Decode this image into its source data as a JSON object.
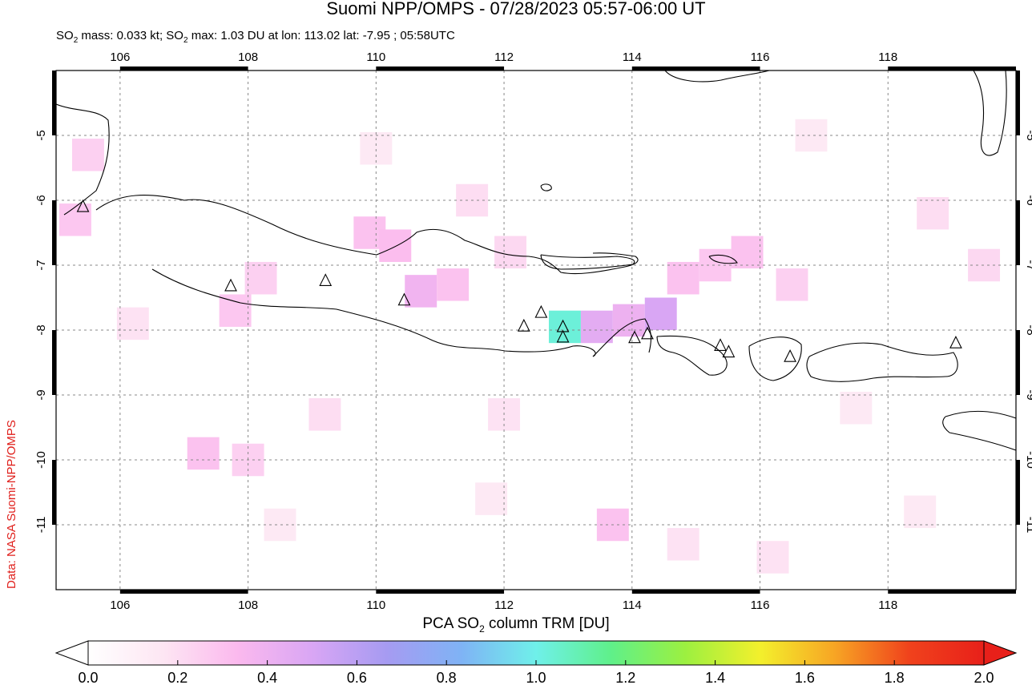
{
  "title": "Suomi NPP/OMPS - 07/28/2023 05:57-06:00 UT",
  "subtitle": {
    "mass_label": "SO",
    "mass_sub": "2",
    "mass_text": " mass: 0.033 kt; ",
    "max_label": "SO",
    "max_sub": "2",
    "max_text": " max: 1.03 DU at lon: 113.02 lat: -7.95 ; 05:58UTC"
  },
  "credit": "Data: NASA Suomi-NPP/OMPS",
  "colorbar": {
    "label_pre": "PCA SO",
    "label_sub": "2",
    "label_post": " column TRM [DU]",
    "ticks": [
      "0.0",
      "0.2",
      "0.4",
      "0.6",
      "0.8",
      "1.0",
      "1.2",
      "1.4",
      "1.6",
      "1.8",
      "2.0"
    ],
    "min": 0.0,
    "max": 2.0,
    "colors": [
      "#ffffff",
      "#fde6f3",
      "#fbb9ee",
      "#d9a6f4",
      "#a69bf2",
      "#7fb3f5",
      "#6ff0ea",
      "#5ff08a",
      "#9cf040",
      "#f3f02c",
      "#f7a524",
      "#f0421c",
      "#e8201a"
    ]
  },
  "map": {
    "lon_ticks": [
      106,
      108,
      110,
      112,
      114,
      116,
      118
    ],
    "lat_ticks": [
      -5,
      -6,
      -7,
      -8,
      -9,
      -10,
      -11
    ],
    "lon_range": [
      105,
      120
    ],
    "lat_range": [
      -4,
      -12
    ],
    "volcanoes": [
      [
        105.42,
        -6.1
      ],
      [
        107.73,
        -7.32
      ],
      [
        109.21,
        -7.24
      ],
      [
        110.44,
        -7.54
      ],
      [
        112.31,
        -7.94
      ],
      [
        112.58,
        -7.73
      ],
      [
        112.92,
        -7.95
      ],
      [
        112.92,
        -8.11
      ],
      [
        114.04,
        -8.12
      ],
      [
        114.24,
        -8.06
      ],
      [
        115.38,
        -8.24
      ],
      [
        115.51,
        -8.34
      ],
      [
        116.47,
        -8.41
      ],
      [
        119.06,
        -8.2
      ]
    ],
    "so2_cells": [
      {
        "lon": 112.95,
        "lat": -7.95,
        "v": 1.03
      },
      {
        "lon": 113.45,
        "lat": -7.95,
        "v": 0.45
      },
      {
        "lon": 113.95,
        "lat": -7.85,
        "v": 0.4
      },
      {
        "lon": 114.45,
        "lat": -7.75,
        "v": 0.5
      },
      {
        "lon": 110.7,
        "lat": -7.4,
        "v": 0.38
      },
      {
        "lon": 111.2,
        "lat": -7.3,
        "v": 0.3
      },
      {
        "lon": 109.9,
        "lat": -6.5,
        "v": 0.3
      },
      {
        "lon": 110.3,
        "lat": -6.7,
        "v": 0.32
      },
      {
        "lon": 114.8,
        "lat": -7.2,
        "v": 0.3
      },
      {
        "lon": 115.3,
        "lat": -7.0,
        "v": 0.28
      },
      {
        "lon": 115.8,
        "lat": -6.8,
        "v": 0.3
      },
      {
        "lon": 116.5,
        "lat": -7.3,
        "v": 0.25
      },
      {
        "lon": 107.8,
        "lat": -7.7,
        "v": 0.28
      },
      {
        "lon": 108.2,
        "lat": -7.2,
        "v": 0.25
      },
      {
        "lon": 107.3,
        "lat": -9.9,
        "v": 0.3
      },
      {
        "lon": 108.0,
        "lat": -10.0,
        "v": 0.25
      },
      {
        "lon": 113.7,
        "lat": -11.0,
        "v": 0.3
      },
      {
        "lon": 105.5,
        "lat": -5.3,
        "v": 0.25
      },
      {
        "lon": 105.3,
        "lat": -6.3,
        "v": 0.28
      },
      {
        "lon": 112.1,
        "lat": -6.8,
        "v": 0.22
      },
      {
        "lon": 111.5,
        "lat": -6.0,
        "v": 0.2
      },
      {
        "lon": 118.7,
        "lat": -6.2,
        "v": 0.2
      },
      {
        "lon": 119.5,
        "lat": -7.0,
        "v": 0.22
      },
      {
        "lon": 112.0,
        "lat": -9.3,
        "v": 0.18
      },
      {
        "lon": 109.2,
        "lat": -9.3,
        "v": 0.2
      },
      {
        "lon": 114.8,
        "lat": -11.3,
        "v": 0.18
      },
      {
        "lon": 116.2,
        "lat": -11.5,
        "v": 0.18
      },
      {
        "lon": 106.2,
        "lat": -7.9,
        "v": 0.18
      },
      {
        "lon": 110.0,
        "lat": -5.2,
        "v": 0.15
      },
      {
        "lon": 116.8,
        "lat": -5.0,
        "v": 0.15
      },
      {
        "lon": 117.5,
        "lat": -9.2,
        "v": 0.15
      },
      {
        "lon": 108.5,
        "lat": -11.0,
        "v": 0.15
      },
      {
        "lon": 111.8,
        "lat": -10.6,
        "v": 0.15
      },
      {
        "lon": 118.5,
        "lat": -10.8,
        "v": 0.15
      }
    ]
  }
}
